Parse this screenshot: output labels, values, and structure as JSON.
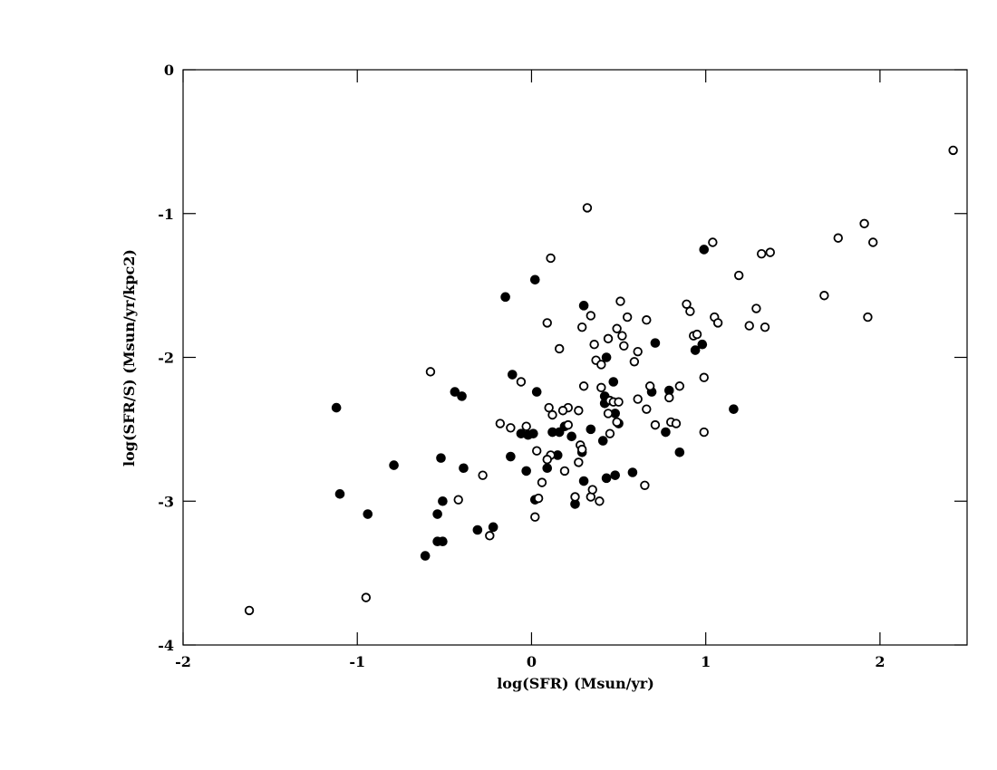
{
  "chart_data": {
    "type": "scatter",
    "x_label": "log(SFR) (Msun/yr)",
    "y_label": "log(SFR/S) (Msun/yr/kpc2)",
    "xlim": [
      -2,
      2.5
    ],
    "ylim": [
      -4,
      0
    ],
    "xticks": [
      -2,
      -1,
      0,
      1,
      2
    ],
    "yticks": [
      -4,
      -3,
      -2,
      -1,
      0
    ],
    "grid": false,
    "series": [
      {
        "color": "#000000",
        "marker": "filled",
        "x": [
          0.99,
          0.02,
          -0.15,
          0.3,
          0.71,
          0.94,
          0.98,
          0.43,
          -0.11,
          0.03,
          -0.44,
          -0.4,
          0.47,
          0.42,
          0.42,
          0.69,
          0.79,
          1.16,
          -1.12,
          -1.1,
          -0.94,
          -0.79,
          -0.54,
          -0.51,
          -0.54,
          -0.51,
          -0.52,
          -0.39,
          -0.61,
          -0.31,
          -0.22,
          -0.12,
          -0.06,
          -0.03,
          -0.02,
          0.01,
          0.02,
          0.09,
          0.12,
          0.15,
          0.16,
          0.19,
          0.23,
          0.25,
          0.29,
          0.3,
          0.34,
          0.41,
          0.43,
          0.48,
          0.48,
          0.5,
          0.58,
          0.77,
          0.85
        ],
        "values": [
          -1.25,
          -1.46,
          -1.58,
          -1.64,
          -1.9,
          -1.95,
          -1.91,
          -2.0,
          -2.12,
          -2.24,
          -2.24,
          -2.27,
          -2.17,
          -2.27,
          -2.32,
          -2.24,
          -2.23,
          -2.36,
          -2.35,
          -2.95,
          -3.09,
          -2.75,
          -3.28,
          -3.28,
          -3.09,
          -3.0,
          -2.7,
          -2.77,
          -3.38,
          -3.2,
          -3.18,
          -2.69,
          -2.53,
          -2.79,
          -2.54,
          -2.53,
          -2.99,
          -2.77,
          -2.52,
          -2.68,
          -2.52,
          -2.48,
          -2.55,
          -3.02,
          -2.66,
          -2.86,
          -2.5,
          -2.58,
          -2.84,
          -2.82,
          -2.39,
          -2.46,
          -2.8,
          -2.52,
          -2.66
        ]
      },
      {
        "color": "#000000",
        "marker": "open",
        "x": [
          2.42,
          0.32,
          1.91,
          1.76,
          1.96,
          1.04,
          0.11,
          1.19,
          1.32,
          1.37,
          1.68,
          0.89,
          0.91,
          0.51,
          0.34,
          0.55,
          0.66,
          1.05,
          1.07,
          1.29,
          1.25,
          1.34,
          1.93,
          0.09,
          0.29,
          0.49,
          0.52,
          0.93,
          0.95,
          0.16,
          0.36,
          0.44,
          0.53,
          0.61,
          0.37,
          0.4,
          0.59,
          -0.58,
          -0.06,
          0.99,
          0.3,
          0.4,
          0.85,
          0.68,
          0.45,
          0.47,
          0.5,
          0.61,
          0.79,
          0.1,
          0.21,
          0.18,
          0.12,
          0.27,
          0.44,
          0.66,
          0.49,
          -0.18,
          -0.12,
          -0.03,
          0.21,
          0.71,
          0.8,
          0.83,
          0.99,
          0.45,
          0.03,
          0.28,
          0.29,
          0.11,
          0.09,
          0.27,
          0.19,
          -0.28,
          0.06,
          0.65,
          -0.42,
          0.04,
          0.25,
          0.34,
          0.35,
          0.39,
          0.02,
          -0.24,
          -0.95,
          -1.62
        ],
        "values": [
          -0.56,
          -0.96,
          -1.07,
          -1.17,
          -1.2,
          -1.2,
          -1.31,
          -1.43,
          -1.28,
          -1.27,
          -1.57,
          -1.63,
          -1.68,
          -1.61,
          -1.71,
          -1.72,
          -1.74,
          -1.72,
          -1.76,
          -1.66,
          -1.78,
          -1.79,
          -1.72,
          -1.76,
          -1.79,
          -1.8,
          -1.85,
          -1.85,
          -1.84,
          -1.94,
          -1.91,
          -1.87,
          -1.92,
          -1.96,
          -2.02,
          -2.05,
          -2.03,
          -2.1,
          -2.17,
          -2.14,
          -2.2,
          -2.21,
          -2.2,
          -2.2,
          -2.3,
          -2.31,
          -2.31,
          -2.29,
          -2.28,
          -2.35,
          -2.35,
          -2.37,
          -2.4,
          -2.37,
          -2.39,
          -2.36,
          -2.45,
          -2.46,
          -2.49,
          -2.48,
          -2.47,
          -2.47,
          -2.45,
          -2.46,
          -2.52,
          -2.53,
          -2.65,
          -2.61,
          -2.64,
          -2.68,
          -2.71,
          -2.73,
          -2.79,
          -2.82,
          -2.87,
          -2.89,
          -2.99,
          -2.98,
          -2.97,
          -2.97,
          -2.92,
          -3.0,
          -3.11,
          -3.24,
          -3.67,
          -3.76
        ]
      }
    ]
  }
}
